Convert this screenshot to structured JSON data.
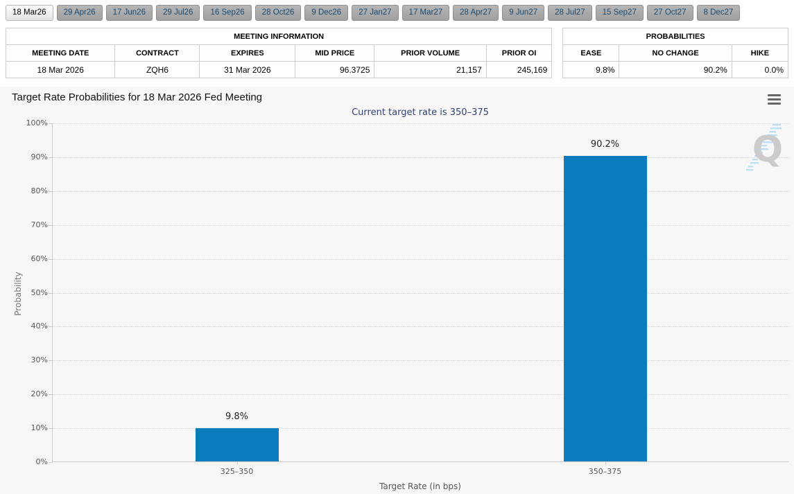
{
  "tabs": {
    "items": [
      {
        "label": "18 Mar26",
        "active": true
      },
      {
        "label": "29 Apr26",
        "active": false
      },
      {
        "label": "17 Jun26",
        "active": false
      },
      {
        "label": "29 Jul26",
        "active": false
      },
      {
        "label": "16 Sep26",
        "active": false
      },
      {
        "label": "28 Oct26",
        "active": false
      },
      {
        "label": "9 Dec26",
        "active": false
      },
      {
        "label": "27 Jan27",
        "active": false
      },
      {
        "label": "17 Mar27",
        "active": false
      },
      {
        "label": "28 Apr27",
        "active": false
      },
      {
        "label": "9 Jun27",
        "active": false
      },
      {
        "label": "28 Jul27",
        "active": false
      },
      {
        "label": "15 Sep27",
        "active": false
      },
      {
        "label": "27 Oct27",
        "active": false
      },
      {
        "label": "8 Dec27",
        "active": false
      }
    ]
  },
  "meeting_info": {
    "title": "MEETING INFORMATION",
    "columns": [
      "MEETING DATE",
      "CONTRACT",
      "EXPIRES",
      "MID PRICE",
      "PRIOR VOLUME",
      "PRIOR OI"
    ],
    "row": [
      "18 Mar 2026",
      "ZQH6",
      "31 Mar 2026",
      "96.3725",
      "21,157",
      "245,169"
    ]
  },
  "probabilities": {
    "title": "PROBABILITIES",
    "columns": [
      "EASE",
      "NO CHANGE",
      "HIKE"
    ],
    "row": [
      "9.8%",
      "90.2%",
      "0.0%"
    ]
  },
  "chart": {
    "menu_icon": "hamburger-icon",
    "watermark_letter": "Q"
  },
  "chart_data": {
    "type": "bar",
    "title": "Target Rate Probabilities for 18 Mar 2026 Fed Meeting",
    "subtitle": "Current target rate is 350–375",
    "categories": [
      "325–350",
      "350–375"
    ],
    "values": [
      9.8,
      90.2
    ],
    "value_labels": [
      "9.8%",
      "90.2%"
    ],
    "xlabel": "Target Rate (in bps)",
    "ylabel": "Probability",
    "ylim": [
      0,
      100
    ],
    "ytick_step": 10,
    "ytick_suffix": "%",
    "grid": "dotted-horizontal",
    "legend": "none",
    "bar_color": "#0b7dbe"
  },
  "colors": {
    "bar_blue": "#0b7dbe",
    "subtitle_navy": "#334276",
    "tab_text_navy": "#1b4a70",
    "chart_background": "#f7f7f7"
  }
}
